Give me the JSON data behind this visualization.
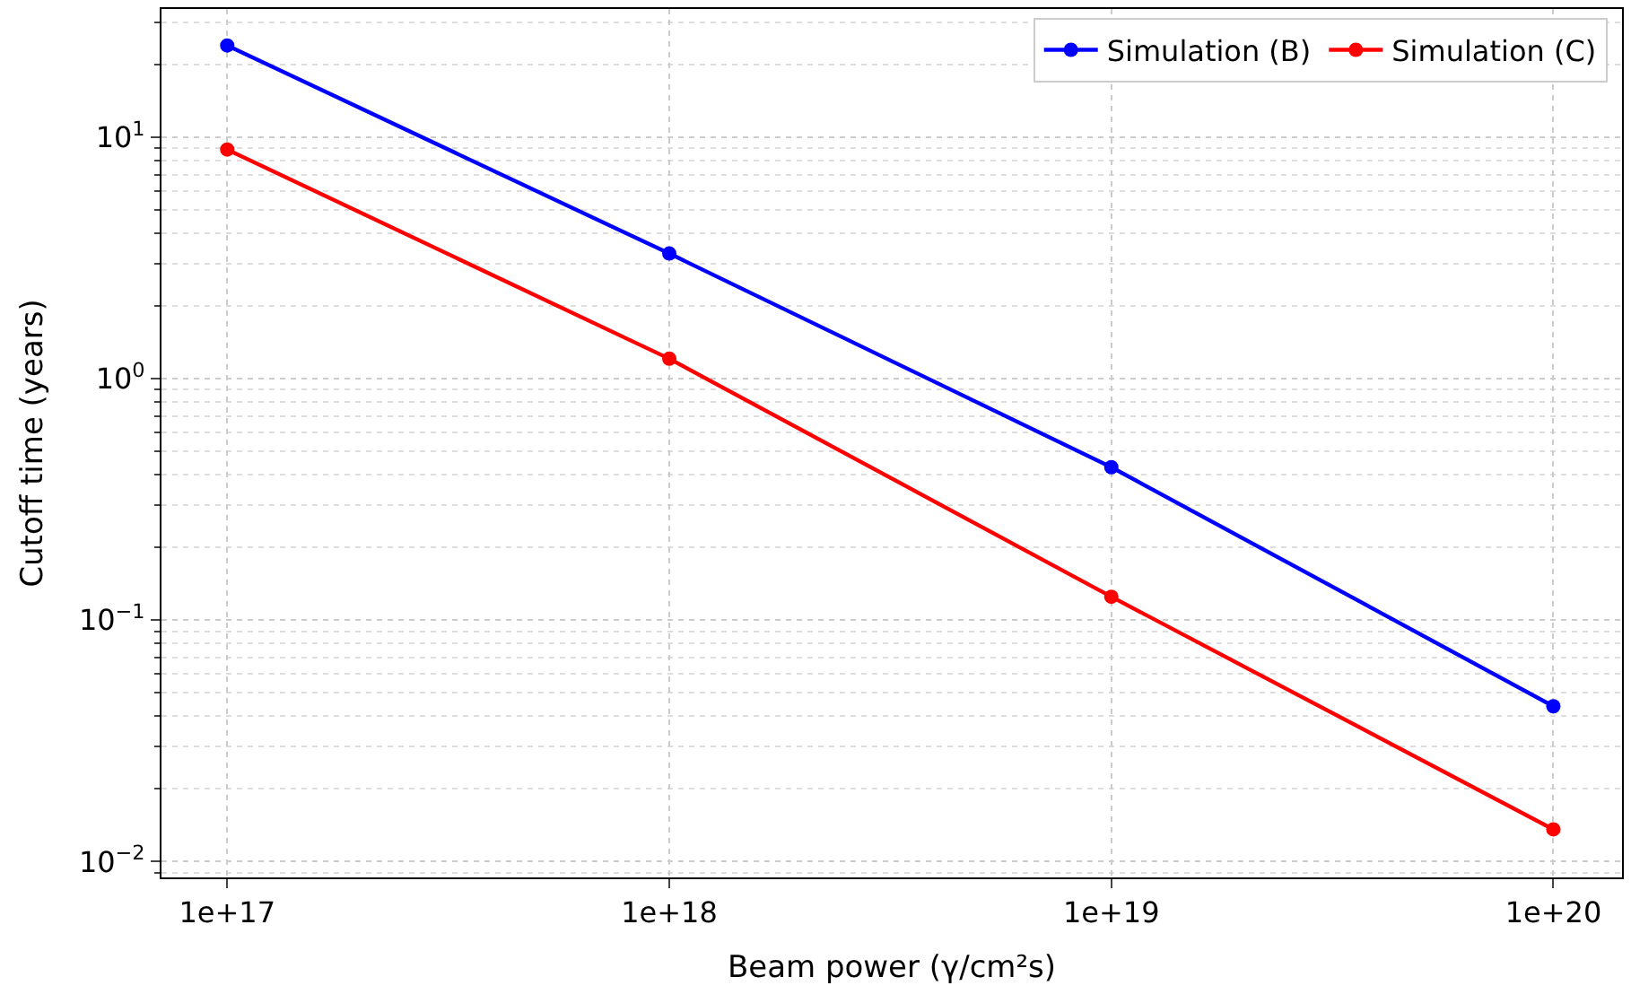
{
  "chart_data": {
    "type": "line",
    "xlabel": "Beam power (γ/cm²s)",
    "ylabel": "Cutoff time (years)",
    "x": [
      1e+17,
      1e+18,
      1e+19,
      1e+20
    ],
    "series": [
      {
        "name": "Simulation (B)",
        "color": "#0000ff",
        "values": [
          24,
          3.3,
          0.43,
          0.044
        ]
      },
      {
        "name": "Simulation (C)",
        "color": "#ff0000",
        "values": [
          8.9,
          1.21,
          0.125,
          0.0136
        ]
      }
    ],
    "log": "xy",
    "xlim": [
      7.1e+16,
      1.43e+20
    ],
    "ylim": [
      0.0086,
      34
    ],
    "xticks": [
      {
        "value": 1e+17,
        "label": "1e+17"
      },
      {
        "value": 1e+18,
        "label": "1e+18"
      },
      {
        "value": 1e+19,
        "label": "1e+19"
      },
      {
        "value": 1e+20,
        "label": "1e+20"
      }
    ],
    "yticks": [
      {
        "value": 0.01,
        "label": "10$^{−2}$"
      },
      {
        "value": 0.1,
        "label": "10$^{−1}$"
      },
      {
        "value": 1,
        "label": "10$^{0}$"
      },
      {
        "value": 10,
        "label": "10$^{1}$"
      }
    ],
    "grid": true,
    "legend": "top right",
    "marker": "circle",
    "line_style": "solid"
  }
}
